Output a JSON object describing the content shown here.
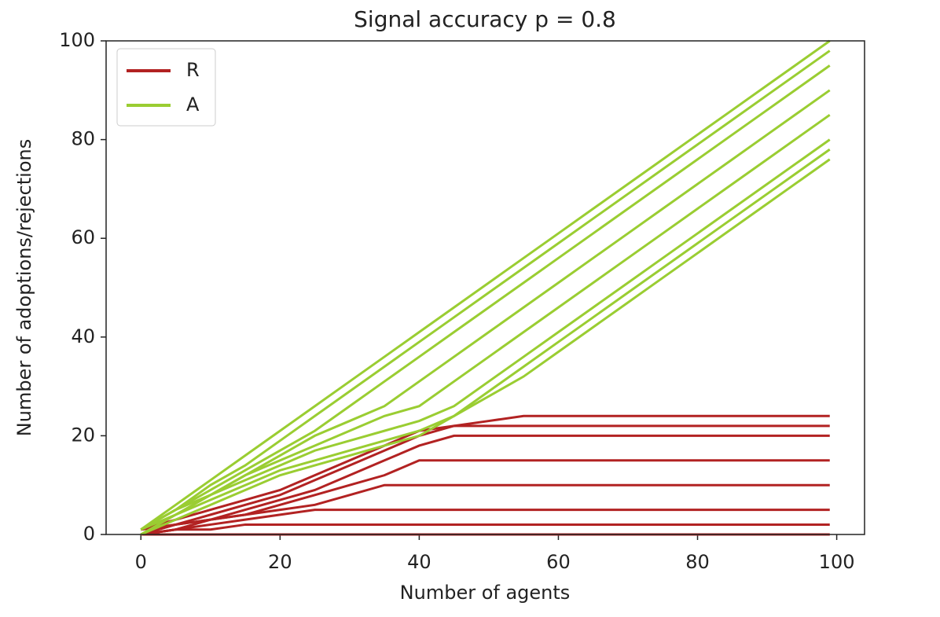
{
  "chart_data": {
    "type": "line",
    "title": "Signal accuracy p =  0.8",
    "x_label": "Number of agents",
    "y_label": "Number of adoptions/rejections",
    "x": [
      0,
      5,
      10,
      15,
      20,
      25,
      30,
      35,
      40,
      45,
      50,
      55,
      60,
      65,
      70,
      75,
      80,
      85,
      90,
      95,
      99
    ],
    "series": [
      {
        "name": "R",
        "color": "#b22222",
        "values": [
          [
            1,
            3,
            5,
            7,
            9,
            12,
            15,
            18,
            21,
            22,
            23,
            24,
            24,
            24,
            24,
            24,
            24,
            24,
            24,
            24,
            24
          ],
          [
            0,
            2,
            4,
            6,
            8,
            11,
            14,
            17,
            20,
            22,
            22,
            22,
            22,
            22,
            22,
            22,
            22,
            22,
            22,
            22,
            22
          ],
          [
            1,
            2,
            3,
            5,
            7,
            9,
            12,
            15,
            18,
            20,
            20,
            20,
            20,
            20,
            20,
            20,
            20,
            20,
            20,
            20,
            20
          ],
          [
            0,
            1,
            3,
            4,
            6,
            8,
            10,
            12,
            15,
            15,
            15,
            15,
            15,
            15,
            15,
            15,
            15,
            15,
            15,
            15,
            15
          ],
          [
            1,
            2,
            3,
            4,
            5,
            6,
            8,
            10,
            10,
            10,
            10,
            10,
            10,
            10,
            10,
            10,
            10,
            10,
            10,
            10,
            10
          ],
          [
            0,
            1,
            2,
            3,
            4,
            5,
            5,
            5,
            5,
            5,
            5,
            5,
            5,
            5,
            5,
            5,
            5,
            5,
            5,
            5,
            5
          ],
          [
            0,
            1,
            1,
            2,
            2,
            2,
            2,
            2,
            2,
            2,
            2,
            2,
            2,
            2,
            2,
            2,
            2,
            2,
            2,
            2,
            2
          ],
          [
            0,
            0,
            0,
            0,
            0,
            0,
            0,
            0,
            0,
            0,
            0,
            0,
            0,
            0,
            0,
            0,
            0,
            0,
            0,
            0,
            0
          ]
        ]
      },
      {
        "name": "A",
        "color": "#9acd32",
        "values": [
          [
            0,
            3,
            6,
            9,
            12,
            14,
            16,
            18,
            20,
            24,
            28,
            32,
            37,
            42,
            47,
            52,
            57,
            62,
            67,
            72,
            76
          ],
          [
            1,
            4,
            7,
            10,
            13,
            15,
            17,
            19,
            21,
            24,
            29,
            34,
            39,
            44,
            49,
            54,
            59,
            64,
            69,
            74,
            78
          ],
          [
            0,
            4,
            8,
            11,
            14,
            17,
            19,
            21,
            23,
            26,
            31,
            36,
            41,
            46,
            51,
            56,
            61,
            66,
            71,
            76,
            80
          ],
          [
            1,
            5,
            8,
            12,
            15,
            18,
            21,
            24,
            26,
            31,
            36,
            41,
            46,
            51,
            56,
            61,
            66,
            71,
            76,
            81,
            85
          ],
          [
            0,
            4,
            8,
            12,
            16,
            20,
            23,
            26,
            31,
            36,
            41,
            46,
            51,
            56,
            61,
            66,
            71,
            76,
            81,
            86,
            90
          ],
          [
            1,
            5,
            9,
            13,
            17,
            21,
            26,
            31,
            36,
            41,
            46,
            51,
            56,
            61,
            66,
            71,
            76,
            81,
            86,
            91,
            95
          ],
          [
            1,
            5,
            10,
            14,
            19,
            24,
            29,
            34,
            39,
            44,
            49,
            54,
            59,
            64,
            69,
            74,
            79,
            84,
            89,
            94,
            98
          ],
          [
            1,
            6,
            11,
            16,
            21,
            26,
            31,
            36,
            41,
            46,
            51,
            56,
            61,
            66,
            71,
            76,
            81,
            86,
            91,
            96,
            100
          ]
        ]
      }
    ],
    "xlim": [
      -5,
      104
    ],
    "ylim": [
      0,
      100
    ],
    "xticks": [
      0,
      20,
      40,
      60,
      80,
      100
    ],
    "yticks": [
      0,
      20,
      40,
      60,
      80,
      100
    ],
    "legend": "upper left",
    "grid": false
  }
}
